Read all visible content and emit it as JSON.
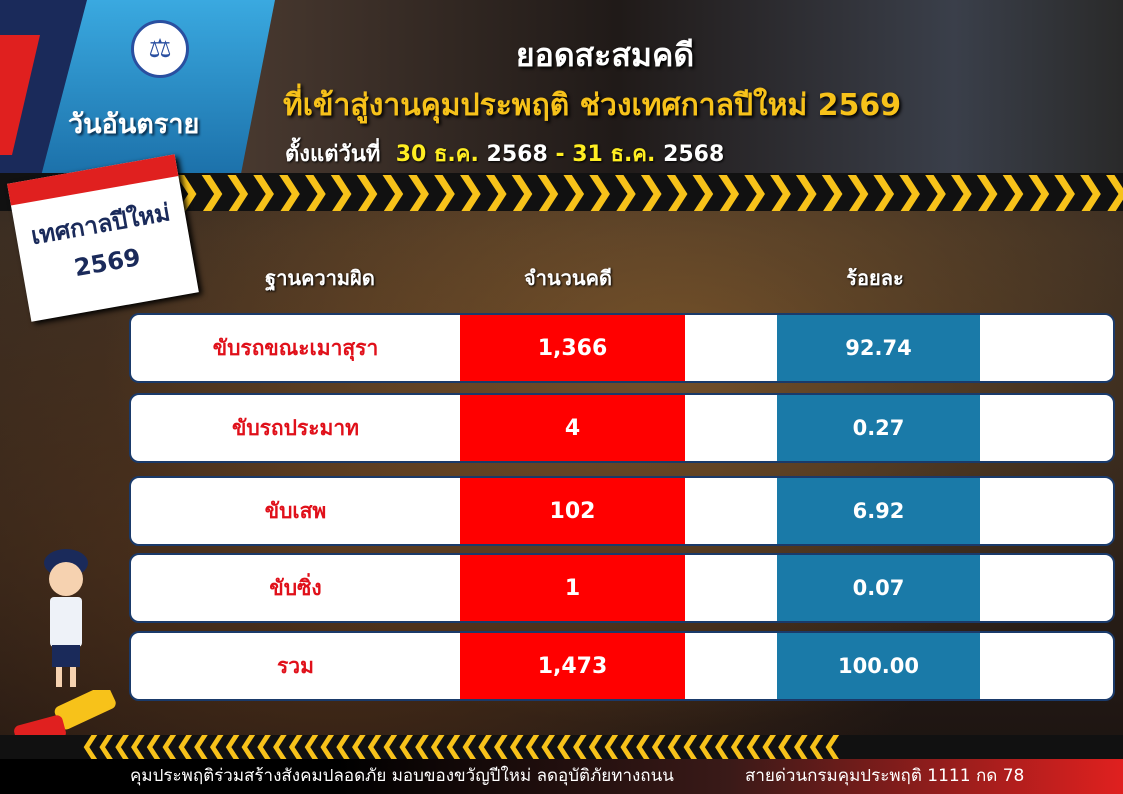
{
  "brand": {
    "name": "วันอันตราย",
    "logo_icon": "department-seal-icon"
  },
  "header": {
    "title": "ยอดสะสมคดี",
    "subtitle": "ที่เข้าสู่งานคุมประพฤติ ช่วงเทศกาลปีใหม่ 2569",
    "date_prefix": "ตั้งแต่วันที่",
    "date_start_day": "30 ธ.ค.",
    "date_start_year": "2568",
    "date_sep": "-",
    "date_end_day": "31 ธ.ค.",
    "date_end_year": "2568"
  },
  "calendar": {
    "line1": "เทศกาลปีใหม่",
    "line2": "2569"
  },
  "table": {
    "headers": {
      "offense": "ฐานความผิด",
      "cases": "จำนวนคดี",
      "percent": "ร้อยละ"
    },
    "rows": [
      {
        "offense": "ขับรถขณะเมาสุรา",
        "cases": "1,366",
        "percent": "92.74"
      },
      {
        "offense": "ขับรถประมาท",
        "cases": "4",
        "percent": "0.27"
      },
      {
        "offense": "ขับเสพ",
        "cases": "102",
        "percent": "6.92"
      },
      {
        "offense": "ขับซิ่ง",
        "cases": "1",
        "percent": "0.07"
      },
      {
        "offense": "รวม",
        "cases": "1,473",
        "percent": "100.00"
      }
    ]
  },
  "footer": {
    "slogan": "คุมประพฤติร่วมสร้างสังคมปลอดภัย มอบของขวัญปีใหม่ ลดอุบัติภัยทางถนน",
    "hotline": "สายด่วนกรมคุมประพฤติ 1111 กด 78"
  },
  "colors": {
    "red": "#ff0000",
    "blue": "#1a7aa8",
    "yellow": "#f7c21a",
    "offense_text": "#e0101a"
  }
}
